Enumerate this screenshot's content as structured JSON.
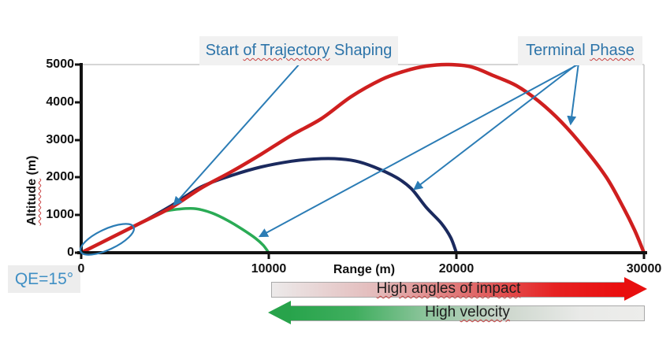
{
  "colors": {
    "annotation_blue": "#2b7cb5",
    "label_blue": "#2d74a9",
    "impact_red": "#e80f0f",
    "velocity_green": "#28a34b",
    "axis_black": "#121212",
    "plot_border_gray": "#c9c9c9"
  },
  "annotations": {
    "start_shaping": {
      "segments": [
        {
          "t": "Start ",
          "u": false
        },
        {
          "t": "of Trajectory",
          "u": true
        },
        {
          "t": " Shaping",
          "u": false
        }
      ],
      "full_text": "Start of Trajectory Shaping",
      "target": "point where the three trajectories diverge (~4800 m range, ~1200 m altitude)"
    },
    "terminal_phase": {
      "segments": [
        {
          "t": "Terminal ",
          "u": false
        },
        {
          "t": "Phase",
          "u": true
        }
      ],
      "full_text": "Terminal Phase",
      "targets": "descending legs of the red, navy and green trajectories"
    },
    "qe_label": {
      "text": "QE=15°"
    },
    "impact_arrow": {
      "segments": [
        {
          "t": "High angles of impact",
          "u": true
        }
      ],
      "full_text": "High angles of impact",
      "direction": "right"
    },
    "velocity_arrow": {
      "segments": [
        {
          "t": "High ",
          "u": false
        },
        {
          "t": "velocity",
          "u": true
        }
      ],
      "full_text": "High velocity",
      "direction": "left"
    },
    "launch_ellipse": "ellipse highlighting common launch segment at origin"
  },
  "axes": {
    "x_title_segments": [
      {
        "t": "Range (m)",
        "u": false
      }
    ],
    "y_title_segments": [
      {
        "t": "Altitude",
        "u": true
      },
      {
        "t": " (m)",
        "u": false
      }
    ],
    "x_ticks": [
      "0",
      "10000",
      "20000",
      "30000"
    ],
    "y_ticks": [
      "0",
      "1000",
      "2000",
      "3000",
      "4000",
      "5000"
    ]
  },
  "chart_data": {
    "type": "line",
    "title": "",
    "xlabel": "Range (m)",
    "ylabel": "Altitude (m)",
    "xlim": [
      0,
      30000
    ],
    "ylim": [
      0,
      5000
    ],
    "xticks": [
      0,
      10000,
      20000,
      30000
    ],
    "yticks": [
      0,
      1000,
      2000,
      3000,
      4000,
      5000
    ],
    "grid": "off (only top and right light-gray plot border)",
    "legend": "none",
    "launch_quadrant_elevation_deg": 15,
    "series": [
      {
        "name": "shaped-long-range-trajectory",
        "color": "#cf1f1f",
        "stroke_px": 4.5,
        "apex": [
          19600,
          5000
        ],
        "impact_range_m": 30000,
        "points": [
          [
            0,
            0
          ],
          [
            1600,
            400
          ],
          [
            3200,
            800
          ],
          [
            4800,
            1200
          ],
          [
            6400,
            1720
          ],
          [
            8000,
            2150
          ],
          [
            9600,
            2620
          ],
          [
            11200,
            3120
          ],
          [
            12800,
            3560
          ],
          [
            14400,
            4150
          ],
          [
            16000,
            4600
          ],
          [
            17200,
            4820
          ],
          [
            18400,
            4960
          ],
          [
            19600,
            5000
          ],
          [
            20800,
            4940
          ],
          [
            22000,
            4700
          ],
          [
            23200,
            4440
          ],
          [
            24400,
            4020
          ],
          [
            25600,
            3470
          ],
          [
            26800,
            2790
          ],
          [
            28000,
            2000
          ],
          [
            28900,
            1200
          ],
          [
            29500,
            600
          ],
          [
            30000,
            0
          ]
        ]
      },
      {
        "name": "medium-range-trajectory",
        "color": "#1b2a5e",
        "stroke_px": 4,
        "apex": [
          13500,
          2500
        ],
        "impact_range_m": 20000,
        "points": [
          [
            0,
            0
          ],
          [
            1600,
            400
          ],
          [
            3200,
            800
          ],
          [
            4800,
            1250
          ],
          [
            6400,
            1750
          ],
          [
            8000,
            2050
          ],
          [
            9600,
            2280
          ],
          [
            11200,
            2430
          ],
          [
            12400,
            2490
          ],
          [
            13500,
            2500
          ],
          [
            14600,
            2440
          ],
          [
            15600,
            2280
          ],
          [
            16800,
            2000
          ],
          [
            17600,
            1700
          ],
          [
            18400,
            1200
          ],
          [
            19200,
            780
          ],
          [
            19700,
            400
          ],
          [
            20000,
            0
          ]
        ]
      },
      {
        "name": "short-range-trajectory",
        "color": "#2aab55",
        "stroke_px": 3.5,
        "apex": [
          6100,
          1170
        ],
        "impact_range_m": 10000,
        "points": [
          [
            4400,
            1100
          ],
          [
            5200,
            1160
          ],
          [
            6100,
            1170
          ],
          [
            7000,
            1050
          ],
          [
            7800,
            860
          ],
          [
            8600,
            620
          ],
          [
            9300,
            380
          ],
          [
            9700,
            200
          ],
          [
            10000,
            0
          ]
        ]
      }
    ]
  }
}
